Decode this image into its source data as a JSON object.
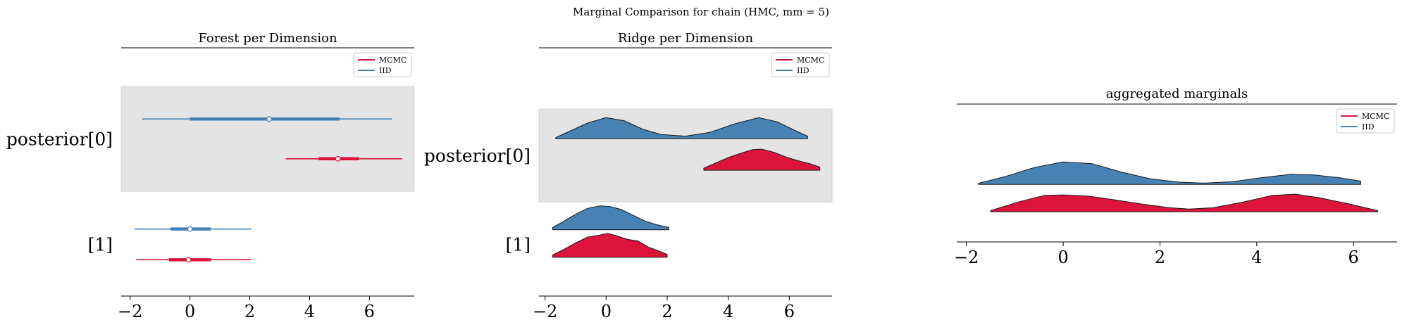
{
  "figure": {
    "suptitle": "Marginal Comparison for chain (HMC, mm = 5)"
  },
  "colors": {
    "mcmc": "#dc143c",
    "iid": "#4682b4",
    "band": "#e4e4e4",
    "axis": "#000000"
  },
  "chart_data": [
    {
      "type": "forest",
      "title": "Forest per Dimension",
      "xlim": [
        -2.3,
        7.5
      ],
      "xticks": [
        -2,
        0,
        2,
        4,
        6
      ],
      "xtick_labels": [
        "−2",
        "0",
        "2",
        "4",
        "6"
      ],
      "rows": [
        {
          "label": "posterior[0]",
          "shaded": true,
          "series": [
            {
              "name": "IID",
              "lo": -1.6,
              "q1": 0.0,
              "median": 2.65,
              "q3": 5.0,
              "hi": 6.75
            },
            {
              "name": "MCMC",
              "lo": 3.2,
              "q1": 4.3,
              "median": 4.95,
              "q3": 5.65,
              "hi": 7.1
            }
          ]
        },
        {
          "label": "[1]",
          "shaded": false,
          "series": [
            {
              "name": "IID",
              "lo": -1.85,
              "q1": -0.65,
              "median": 0.0,
              "q3": 0.7,
              "hi": 2.05
            },
            {
              "name": "MCMC",
              "lo": -1.8,
              "q1": -0.7,
              "median": -0.05,
              "q3": 0.7,
              "hi": 2.05
            }
          ]
        }
      ],
      "legend": {
        "placement": "top-right",
        "entries": [
          "MCMC",
          "IID"
        ]
      }
    },
    {
      "type": "ridge",
      "title": "Ridge per Dimension",
      "xlim": [
        -2.2,
        7.4
      ],
      "xticks": [
        -2,
        0,
        2,
        4,
        6
      ],
      "xtick_labels": [
        "−2",
        "0",
        "2",
        "4",
        "6"
      ],
      "rows": [
        {
          "label": "posterior[0]",
          "shaded": true,
          "series": [
            {
              "name": "IID",
              "x": [
                -1.65,
                -1.2,
                -0.6,
                0.0,
                0.6,
                1.2,
                1.8,
                2.6,
                3.4,
                4.2,
                5.0,
                5.6,
                6.1,
                6.6
              ],
              "density": [
                0.05,
                0.35,
                0.75,
                1.0,
                0.85,
                0.45,
                0.2,
                0.12,
                0.3,
                0.7,
                1.0,
                0.8,
                0.45,
                0.12
              ]
            },
            {
              "name": "MCMC",
              "x": [
                3.2,
                3.6,
                4.0,
                4.4,
                4.8,
                5.1,
                5.5,
                5.9,
                6.3,
                6.7,
                7.0
              ],
              "density": [
                0.1,
                0.35,
                0.6,
                0.8,
                0.98,
                1.0,
                0.85,
                0.62,
                0.45,
                0.3,
                0.15
              ]
            }
          ]
        },
        {
          "label": "[1]",
          "shaded": false,
          "series": [
            {
              "name": "IID",
              "x": [
                -1.75,
                -1.4,
                -1.0,
                -0.6,
                -0.2,
                0.1,
                0.5,
                0.9,
                1.3,
                1.7,
                2.05
              ],
              "density": [
                0.1,
                0.35,
                0.65,
                0.9,
                1.0,
                0.98,
                0.85,
                0.6,
                0.35,
                0.2,
                0.1
              ]
            },
            {
              "name": "MCMC",
              "x": [
                -1.75,
                -1.4,
                -1.0,
                -0.6,
                -0.25,
                0.05,
                0.35,
                0.7,
                1.05,
                1.4,
                1.75,
                2.0
              ],
              "density": [
                0.1,
                0.32,
                0.6,
                0.85,
                0.92,
                1.0,
                0.9,
                0.75,
                0.68,
                0.42,
                0.25,
                0.12
              ]
            }
          ]
        }
      ],
      "legend": {
        "placement": "top-right",
        "entries": [
          "MCMC",
          "IID"
        ]
      }
    },
    {
      "type": "ridge",
      "title": "aggregated marginals",
      "xlim": [
        -2.2,
        6.9
      ],
      "xticks": [
        -2,
        0,
        2,
        4,
        6
      ],
      "xtick_labels": [
        "−2",
        "0",
        "2",
        "4",
        "6"
      ],
      "rows": [
        {
          "label": "",
          "shaded": false,
          "series": [
            {
              "name": "IID",
              "x": [
                -1.75,
                -1.2,
                -0.6,
                0.0,
                0.6,
                1.2,
                1.8,
                2.4,
                2.9,
                3.5,
                4.1,
                4.7,
                5.2,
                5.7,
                6.15
              ],
              "density": [
                0.05,
                0.35,
                0.75,
                1.0,
                0.92,
                0.55,
                0.25,
                0.1,
                0.06,
                0.12,
                0.3,
                0.45,
                0.42,
                0.3,
                0.15
              ]
            },
            {
              "name": "MCMC",
              "x": [
                -1.5,
                -0.9,
                -0.4,
                0.0,
                0.5,
                1.0,
                1.6,
                2.2,
                2.6,
                3.1,
                3.7,
                4.3,
                4.8,
                5.3,
                5.9,
                6.5
              ],
              "density": [
                0.05,
                0.45,
                0.72,
                0.75,
                0.7,
                0.55,
                0.35,
                0.18,
                0.12,
                0.18,
                0.42,
                0.72,
                0.78,
                0.62,
                0.35,
                0.05
              ]
            }
          ]
        }
      ],
      "legend": {
        "placement": "top-right",
        "entries": [
          "MCMC",
          "IID"
        ]
      }
    }
  ]
}
